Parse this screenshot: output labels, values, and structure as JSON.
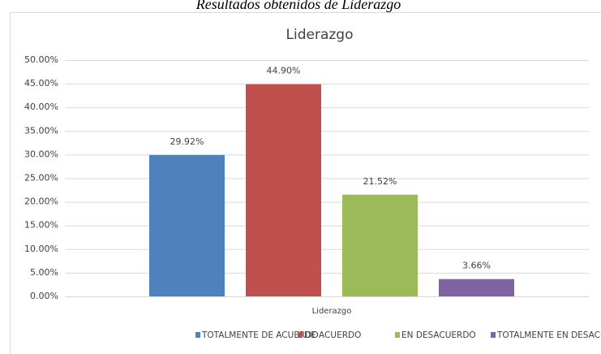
{
  "chart_data": {
    "type": "bar",
    "caption": "Resultados obtenidos de Liderazgo",
    "title": "Liderazgo",
    "categories": [
      "Liderazgo"
    ],
    "series": [
      {
        "name": "TOTALMENTE DE ACUERDO",
        "color": "#4f81bd",
        "values": [
          29.92
        ],
        "value_labels": [
          "29.92%"
        ]
      },
      {
        "name": "DE ACUERDO",
        "color": "#c0504d",
        "values": [
          44.9
        ],
        "value_labels": [
          "44.90%"
        ]
      },
      {
        "name": "EN DESACUERDO",
        "color": "#9bbb59",
        "values": [
          21.52
        ],
        "value_labels": [
          "21.52%"
        ]
      },
      {
        "name": "TOTALMENTE EN DESACUERDO",
        "color": "#8064a2",
        "values": [
          3.66
        ],
        "value_labels": [
          "3.66%"
        ]
      }
    ],
    "ylim": [
      0,
      50
    ],
    "yticks": [
      {
        "value": 0,
        "label": "0.00%"
      },
      {
        "value": 5,
        "label": "5.00%"
      },
      {
        "value": 10,
        "label": "10.00%"
      },
      {
        "value": 15,
        "label": "15.00%"
      },
      {
        "value": 20,
        "label": "20.00%"
      },
      {
        "value": 25,
        "label": "25.00%"
      },
      {
        "value": 30,
        "label": "30.00%"
      },
      {
        "value": 35,
        "label": "35.00%"
      },
      {
        "value": 40,
        "label": "40.00%"
      },
      {
        "value": 45,
        "label": "45.00%"
      },
      {
        "value": 50,
        "label": "50.00%"
      }
    ],
    "grid": true,
    "legend": "bottom"
  }
}
